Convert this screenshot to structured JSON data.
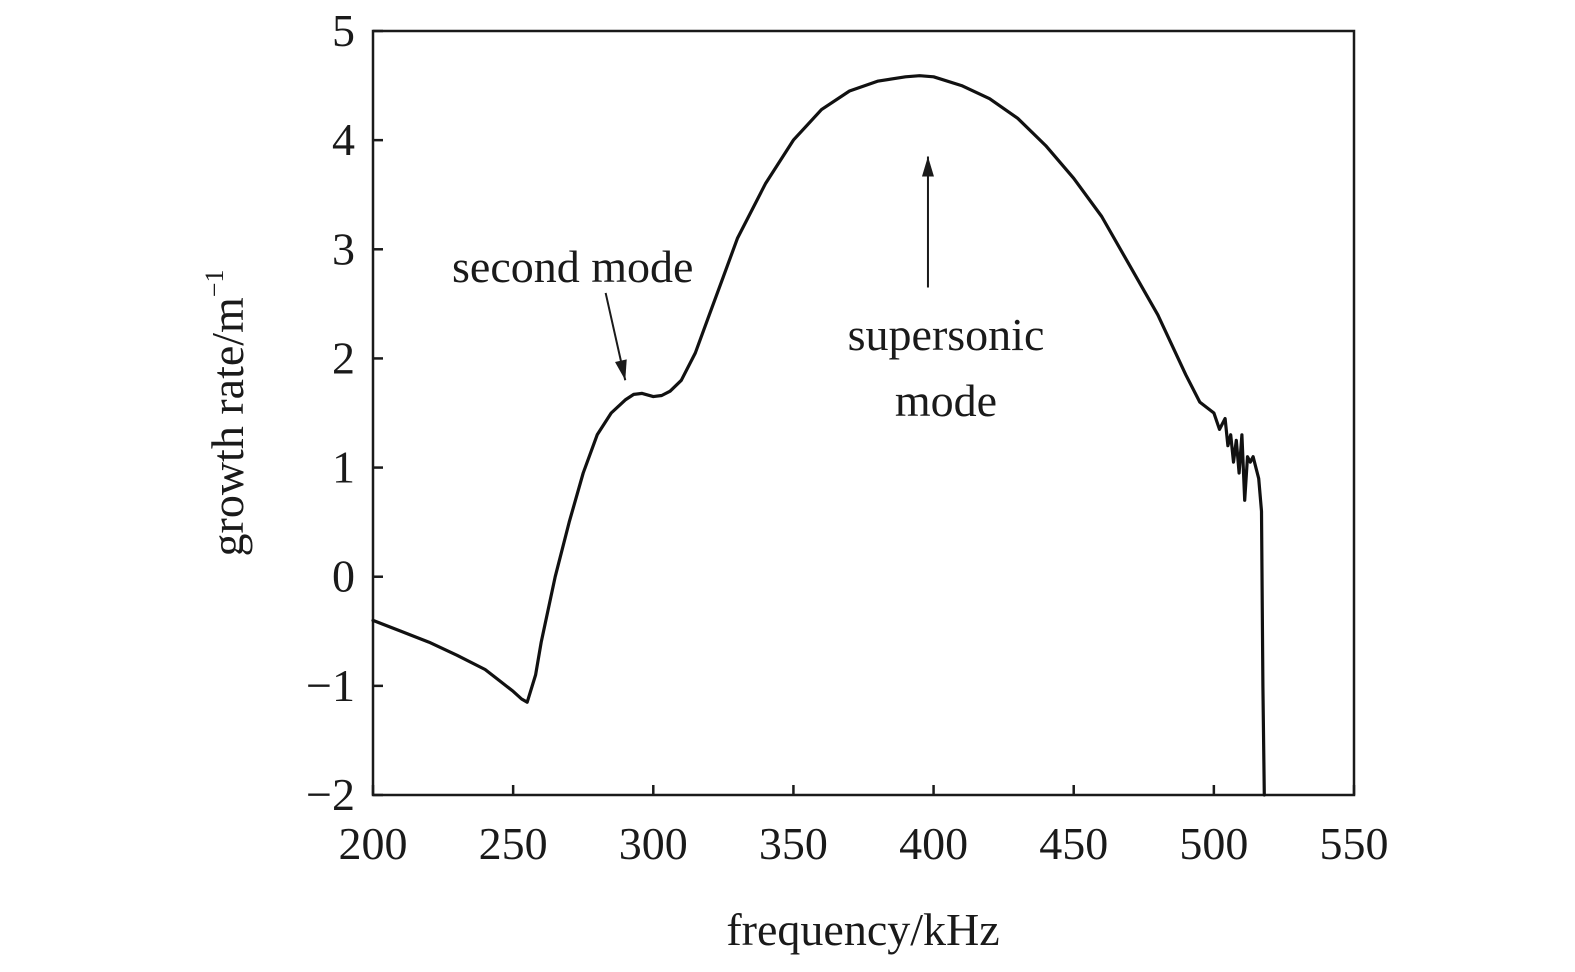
{
  "chart_data": {
    "type": "line",
    "title": "",
    "xlabel": "frequency/kHz",
    "ylabel": "growth rate/m",
    "ylabel_superscript": "−1",
    "xlim": [
      200,
      550
    ],
    "ylim": [
      -2,
      5
    ],
    "x_ticks": [
      200,
      250,
      300,
      350,
      400,
      450,
      500,
      550
    ],
    "x_tick_labels": [
      "200",
      "250",
      "300",
      "350",
      "400",
      "450",
      "500",
      "550"
    ],
    "y_ticks": [
      -2,
      -1,
      0,
      1,
      2,
      3,
      4,
      5
    ],
    "y_tick_labels": [
      "−2",
      "−1",
      "0",
      "1",
      "2",
      "3",
      "4",
      "5"
    ],
    "grid": false,
    "legend": "none",
    "line_color": "#111111",
    "series": [
      {
        "x": [
          200,
          210,
          220,
          230,
          240,
          245,
          250,
          253,
          255,
          258,
          260,
          265,
          270,
          275,
          280,
          285,
          290,
          293,
          296,
          300,
          303,
          306,
          310,
          315,
          320,
          325,
          330,
          340,
          350,
          360,
          370,
          380,
          390,
          395,
          400,
          410,
          420,
          430,
          440,
          450,
          460,
          470,
          480,
          490,
          495,
          500,
          502,
          504,
          505,
          506,
          507,
          508,
          509,
          510,
          511,
          512,
          513,
          514,
          515,
          516,
          517,
          517.5,
          518
        ],
        "y": [
          -0.4,
          -0.5,
          -0.6,
          -0.72,
          -0.85,
          -0.95,
          -1.05,
          -1.12,
          -1.15,
          -0.9,
          -0.6,
          0.0,
          0.5,
          0.95,
          1.3,
          1.5,
          1.62,
          1.67,
          1.68,
          1.65,
          1.66,
          1.7,
          1.8,
          2.05,
          2.4,
          2.75,
          3.1,
          3.6,
          4.0,
          4.28,
          4.45,
          4.54,
          4.58,
          4.59,
          4.58,
          4.5,
          4.38,
          4.2,
          3.95,
          3.65,
          3.3,
          2.85,
          2.4,
          1.85,
          1.6,
          1.5,
          1.35,
          1.45,
          1.2,
          1.3,
          1.05,
          1.25,
          0.95,
          1.3,
          0.7,
          1.1,
          1.05,
          1.1,
          1.0,
          0.9,
          0.6,
          -1.0,
          -2.0
        ]
      }
    ],
    "annotations": [
      {
        "text": "second mode",
        "arrow_from": [
          283,
          2.6
        ],
        "arrow_to": [
          290,
          1.8
        ]
      },
      {
        "text": "supersonic",
        "text_line2": "mode",
        "arrow_from": [
          398,
          2.65
        ],
        "arrow_to": [
          398,
          3.85
        ]
      }
    ]
  }
}
